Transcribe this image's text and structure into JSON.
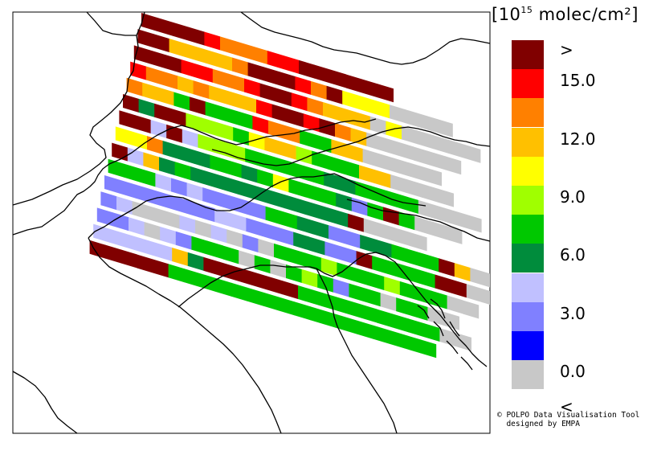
{
  "map": {
    "units_prefix": "[10",
    "units_exponent": "15",
    "units_suffix": " molec/cm²]",
    "legend": [
      {
        "label": ">",
        "color": "#800000"
      },
      {
        "label": "15.0",
        "color": "#ff0000"
      },
      {
        "label": "",
        "color": "#ff8000"
      },
      {
        "label": "12.0",
        "color": "#ffc000"
      },
      {
        "label": "",
        "color": "#ffff00"
      },
      {
        "label": "9.0",
        "color": "#a0ff00"
      },
      {
        "label": "",
        "color": "#00c800"
      },
      {
        "label": "6.0",
        "color": "#008c3c"
      },
      {
        "label": "",
        "color": "#c0c0ff"
      },
      {
        "label": "3.0",
        "color": "#8080ff"
      },
      {
        "label": "",
        "color": "#0000ff"
      },
      {
        "label": "0.0",
        "color": "#c8c8c8"
      },
      {
        "label": "<",
        "color": ""
      }
    ],
    "swath_class_rows": [
      "0000122211000000",
      "0033332000120444AAAA",
      "000112210012333A4AAAAA",
      "122323331001023AAAAAA",
      "233606661226633AAAAA",
      "07005556433566633AAAA",
      "0080855566666776666AAAA",
      "4427776676466679606AAA",
      "0837677777777770AAAA",
      "66689899996677997766603AA",
      "99999998899977990666600AA",
      "98AAA8A8A9A66656665666AA",
      "998A89666A6A656966A66AA",
      "8888837000000666666666AA",
      "0000066666666666666666"
    ],
    "credit_line1": "© POLPO Data Visualisation Tool",
    "credit_line2": "  designed by EMPA"
  }
}
